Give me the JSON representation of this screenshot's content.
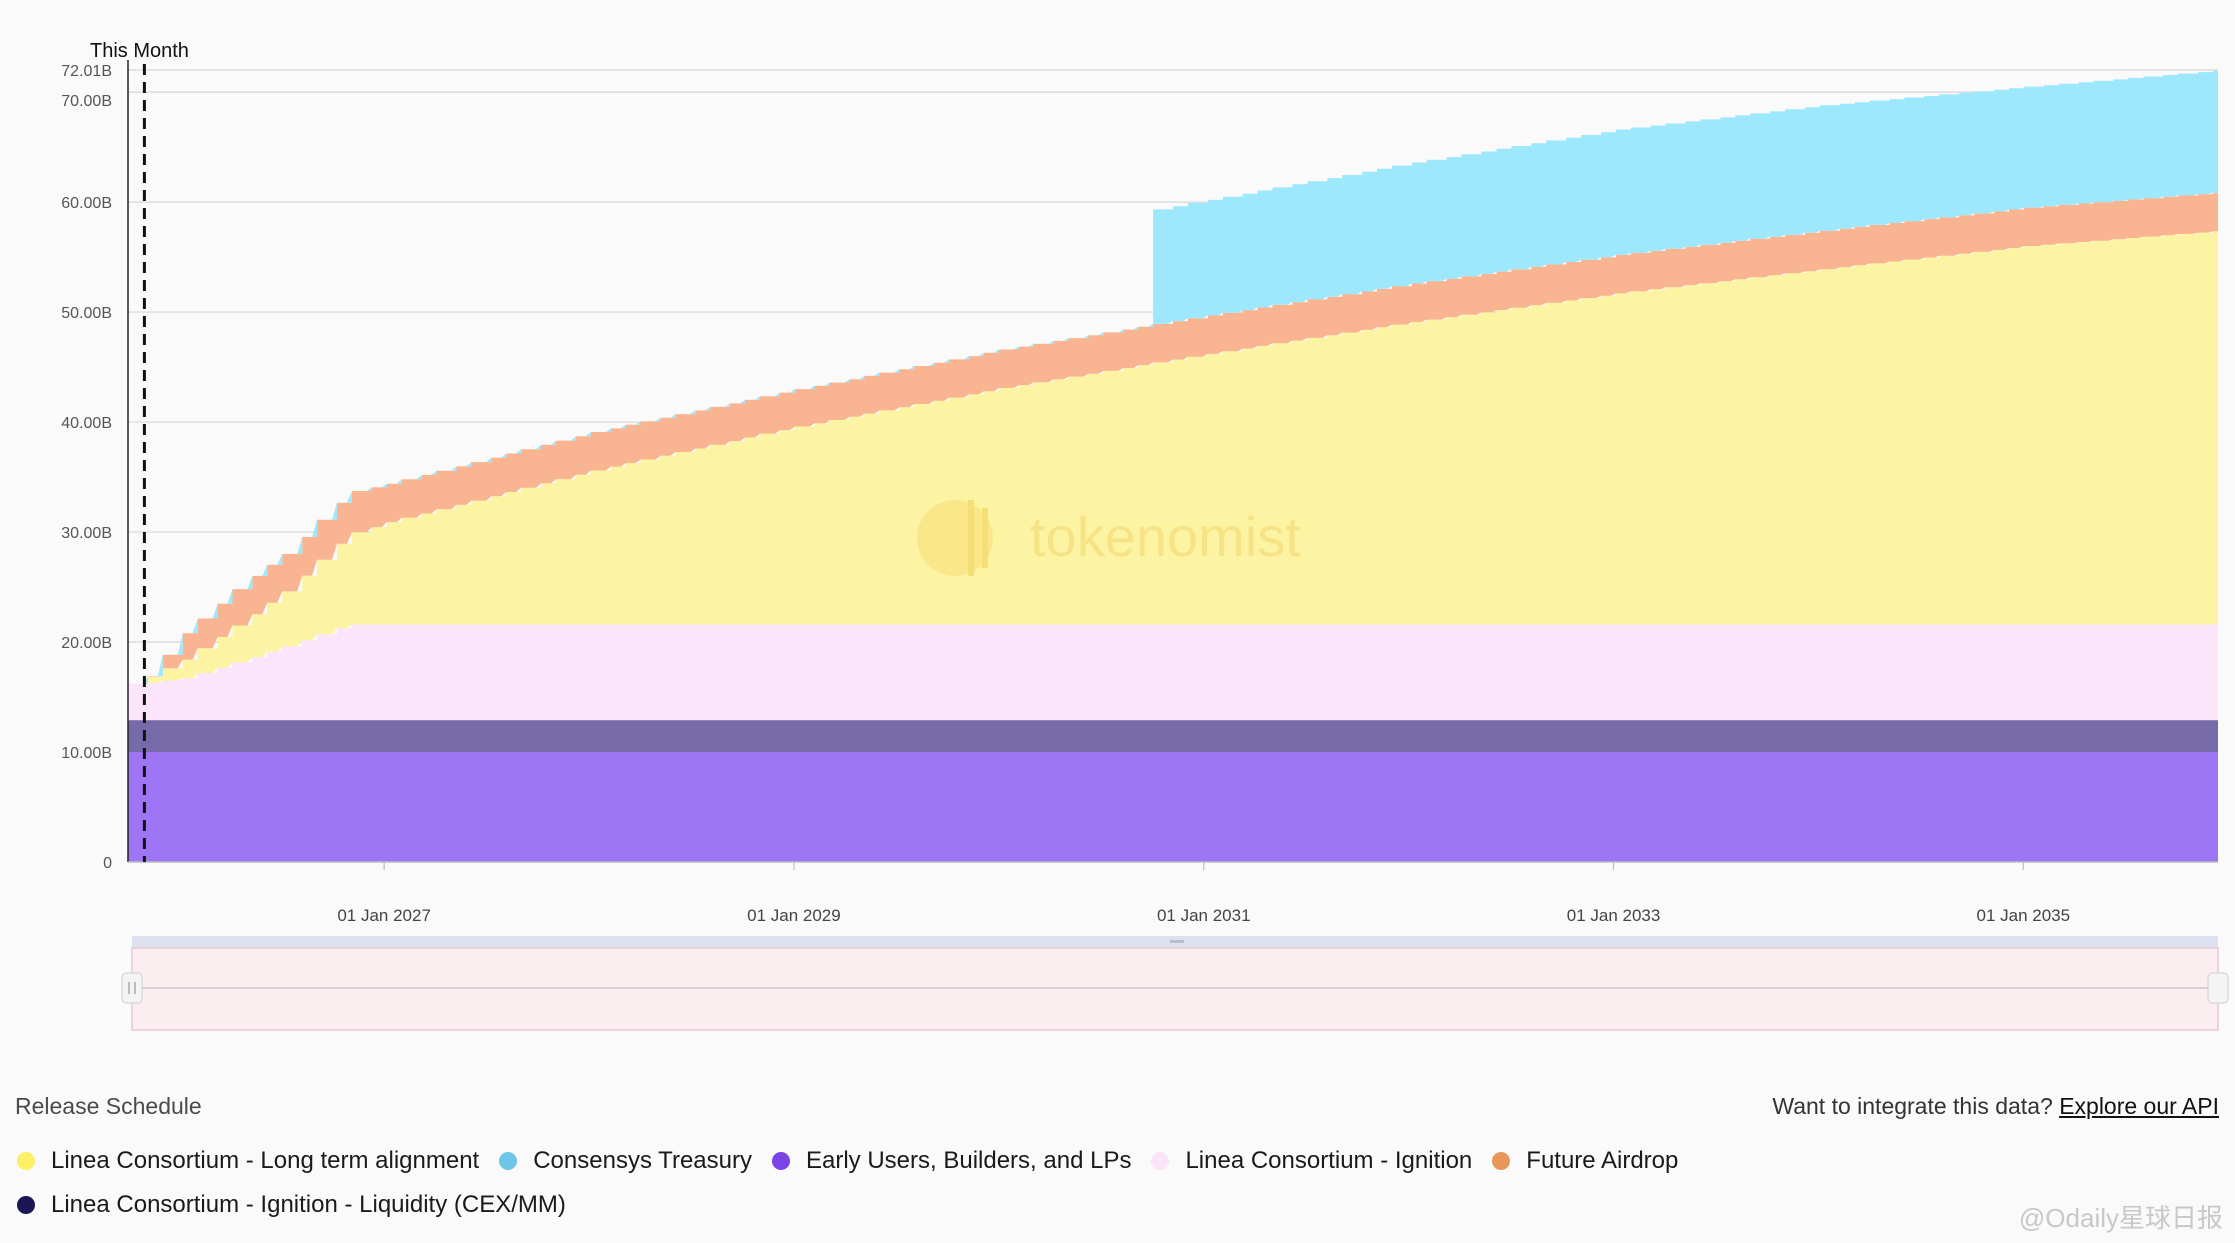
{
  "chart_data": {
    "type": "area",
    "stacked": true,
    "title": "",
    "xlabel": "",
    "ylabel": "",
    "ylim": [
      0,
      72.01
    ],
    "xlim": [
      2025.75,
      2035.95
    ],
    "yticks": [
      0,
      10,
      20,
      30,
      40,
      50,
      60,
      70,
      72.01
    ],
    "ytick_labels": [
      "0",
      "10.00B",
      "20.00B",
      "30.00B",
      "40.00B",
      "50.00B",
      "60.00B",
      "70.00B",
      "72.01B"
    ],
    "xticks": [
      2027,
      2029,
      2031,
      2033,
      2035
    ],
    "xtick_labels": [
      "01 Jan 2027",
      "01 Jan 2029",
      "01 Jan 2031",
      "01 Jan 2033",
      "01 Jan 2035"
    ],
    "current_marker": {
      "label": "This Month",
      "x": 2025.83
    },
    "grid": true,
    "series": [
      {
        "name": "Early Users, Builders, and LPs",
        "color": "#9d75f5",
        "x": [
          2025.75,
          2035.95
        ],
        "values": [
          10.0,
          10.0
        ]
      },
      {
        "name": "Linea Consortium - Ignition - Liquidity (CEX/MM)",
        "color": "#766aa8",
        "x": [
          2025.75,
          2035.95
        ],
        "values": [
          2.9,
          2.9
        ]
      },
      {
        "name": "Linea Consortium - Ignition",
        "color": "#fce4fa",
        "x": [
          2025.75,
          2025.8,
          2025.83,
          2026.0,
          2026.5,
          2026.8,
          2035.95
        ],
        "values": [
          3.3,
          3.3,
          3.4,
          3.8,
          6.7,
          8.7,
          8.7
        ]
      },
      {
        "name": "Linea Consortium - Long term alignment",
        "color": "#fdf4a3",
        "x": [
          2025.75,
          2025.8,
          2025.83,
          2026.0,
          2026.5,
          2026.8,
          2027,
          2028,
          2029,
          2030,
          2031,
          2032,
          2033,
          2034,
          2035,
          2035.95
        ],
        "values": [
          0.0,
          0.0,
          0.5,
          1.7,
          5.0,
          8.2,
          9.3,
          14.0,
          18.0,
          21.5,
          24.6,
          27.5,
          30.1,
          32.3,
          34.4,
          35.8
        ]
      },
      {
        "name": "Future Airdrop",
        "color": "#f9b592",
        "x": [
          2025.75,
          2025.8,
          2025.83,
          2026.0,
          2026.3,
          2026.5,
          2026.8,
          2027,
          2028,
          2029,
          2030,
          2031,
          2032,
          2033,
          2034,
          2035,
          2035.95
        ],
        "values": [
          0.0,
          0.0,
          0.0,
          2.4,
          3.5,
          3.4,
          3.8,
          3.5,
          3.5,
          3.4,
          3.5,
          3.5,
          3.5,
          3.5,
          3.5,
          3.5,
          3.5
        ]
      },
      {
        "name": "Consensys Treasury",
        "color": "#9de8fc",
        "x": [
          2025.75,
          2030.7,
          2030.71,
          2031,
          2032,
          2033,
          2034,
          2035,
          2035.95
        ],
        "values": [
          0.0,
          0.0,
          10.4,
          10.5,
          11.0,
          11.4,
          11.4,
          11.0,
          11.1
        ]
      }
    ]
  },
  "legend": [
    {
      "label": "Linea Consortium - Long term alignment",
      "color": "#fdf067"
    },
    {
      "label": "Consensys Treasury",
      "color": "#6ec6e8"
    },
    {
      "label": "Early Users, Builders, and LPs",
      "color": "#7a45e6"
    },
    {
      "label": "Linea Consortium - Ignition",
      "color": "#fbe3f8"
    },
    {
      "label": "Future Airdrop",
      "color": "#e8965a"
    },
    {
      "label": "Linea Consortium - Ignition - Liquidity (CEX/MM)",
      "color": "#1a1754"
    }
  ],
  "footer": {
    "title": "Release Schedule",
    "api_prompt": "Want to integrate this data?",
    "api_link": "Explore our API"
  },
  "watermark": {
    "center_text": "tokenomist",
    "corner_text": "@Odaily星球日报"
  }
}
